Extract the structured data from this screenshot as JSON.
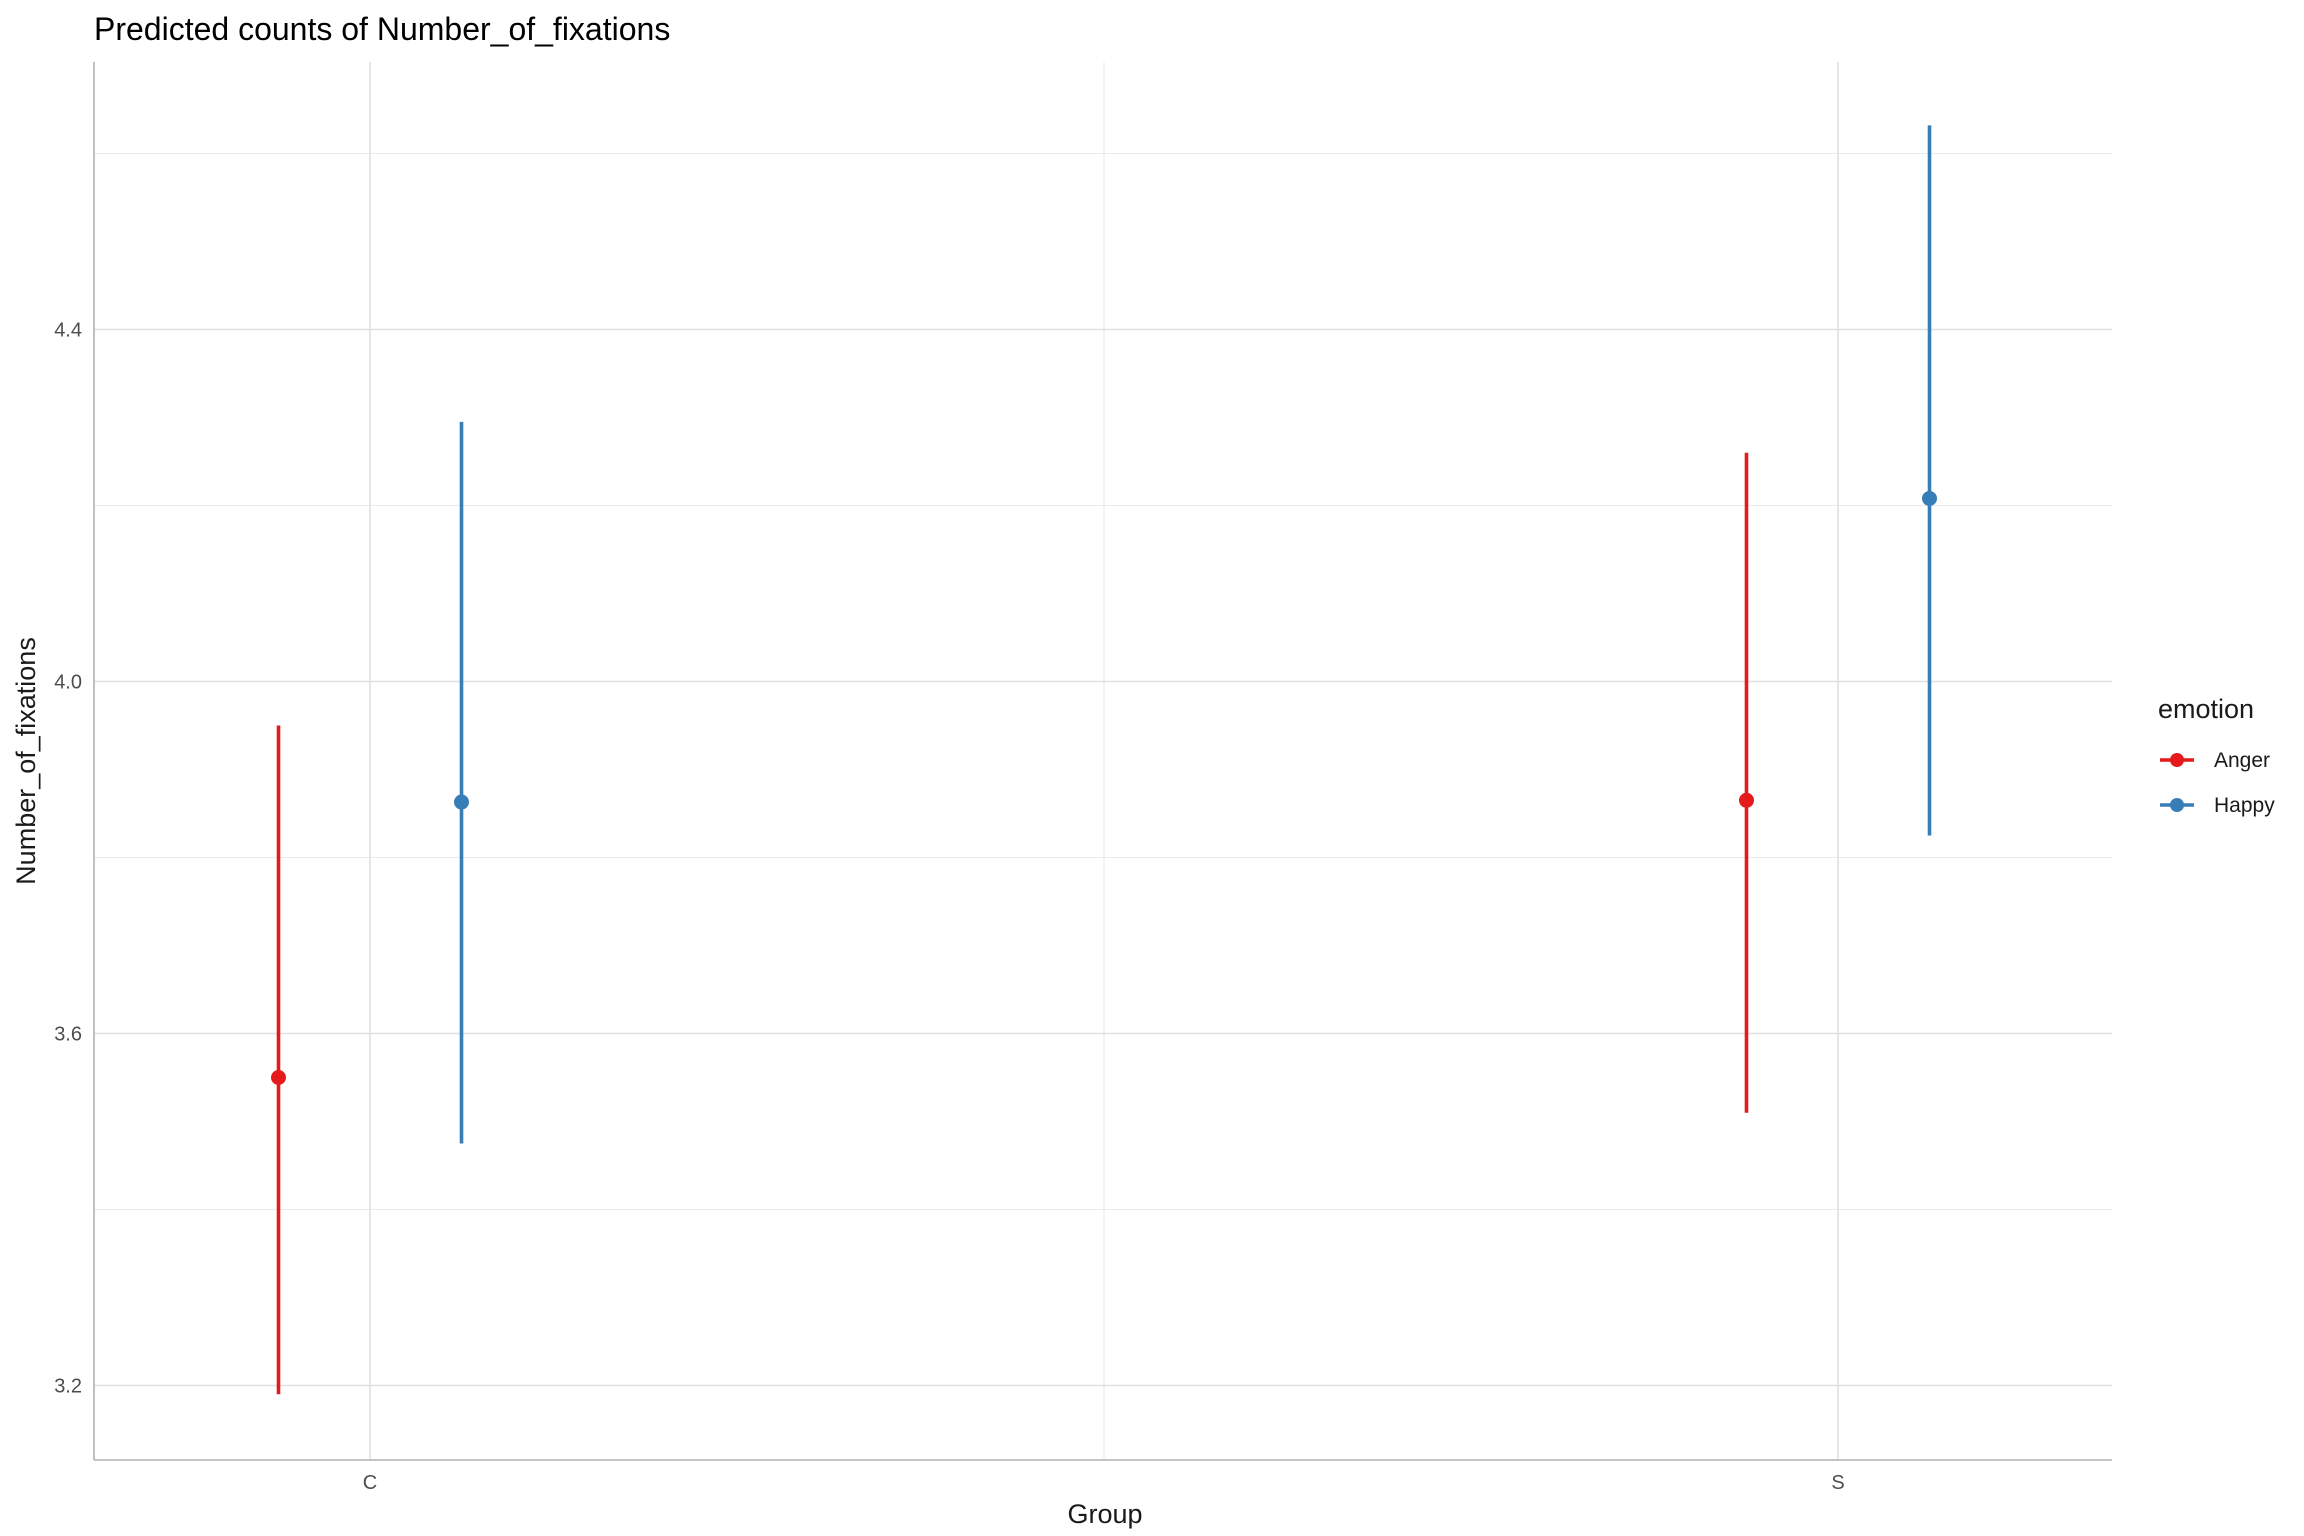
{
  "chart_data": {
    "type": "errorbar",
    "title": "Predicted counts of Number_of_fixations",
    "xlabel": "Group",
    "ylabel": "Number_of_fixations",
    "categories": [
      "C",
      "S"
    ],
    "yticks": [
      3.2,
      3.6,
      4.0,
      4.4
    ],
    "ylim": [
      3.12,
      4.72
    ],
    "grid": true,
    "legend": {
      "title": "emotion",
      "position": "right"
    },
    "series": [
      {
        "name": "Anger",
        "color": "#e41a1c",
        "points": [
          {
            "category": "C",
            "estimate": 3.55,
            "lower": 3.19,
            "upper": 3.95
          },
          {
            "category": "S",
            "estimate": 3.865,
            "lower": 3.51,
            "upper": 4.26
          }
        ]
      },
      {
        "name": "Happy",
        "color": "#377eb8",
        "points": [
          {
            "category": "C",
            "estimate": 3.863,
            "lower": 3.475,
            "upper": 4.295
          },
          {
            "category": "S",
            "estimate": 4.208,
            "lower": 3.825,
            "upper": 4.632
          }
        ]
      }
    ]
  }
}
